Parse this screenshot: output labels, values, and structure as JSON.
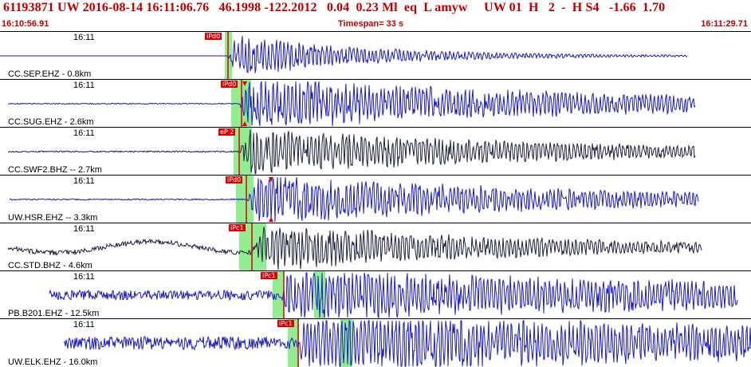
{
  "header": {
    "title": "61193871 UW 2016-08-14 16:11:06.76   46.1998 -122.2012   0.04  0.23 Ml  eq  L amyw     UW 01  H   2  -  H S4   -1.66  1.70",
    "start_time": "16:10:56.91",
    "timespan": "Timespan= 33 s",
    "end_time": "16:11:29.71"
  },
  "colors": {
    "trace": "#1a1acc",
    "trace_dark": "#202040",
    "pick": "#e00000",
    "window": "#90ee90"
  },
  "panels": [
    {
      "tick": "16:11",
      "station": "CC.SEP.EHZ - 0.8km",
      "pick": "iPd0"
    },
    {
      "tick": "16:11",
      "station": "CC.SUG.EHZ - 2.6km",
      "pick": "iPd0"
    },
    {
      "tick": "16:11",
      "station": "CC.SWF2.BHZ -- 2.7km",
      "pick": "eP 2"
    },
    {
      "tick": "16:11",
      "station": "UW.HSR.EHZ -- 3.3km",
      "pick": "iPd0"
    },
    {
      "tick": "16:11",
      "station": "CC.STD.BHZ - 4.6km",
      "pick": "iPc1"
    },
    {
      "tick": "16:11",
      "station": "PB.B201.EHZ - 12.5km",
      "pick": "iPc1"
    },
    {
      "tick": "16:11",
      "station": "UW.ELK.EHZ - 16.0km",
      "pick": "iPc1"
    }
  ]
}
